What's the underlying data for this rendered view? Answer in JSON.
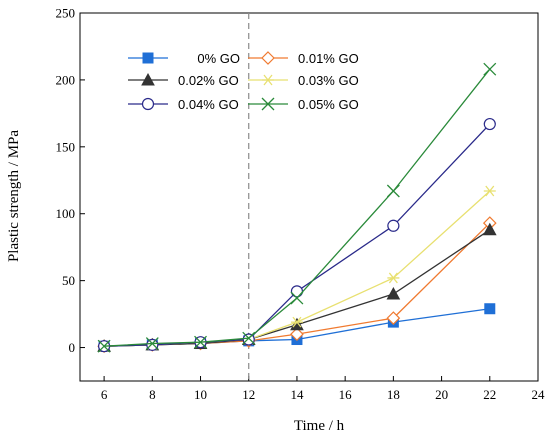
{
  "chart_data": {
    "type": "line",
    "xlabel": "Time / h",
    "ylabel": "Plastic strength / MPa",
    "xlim": [
      5,
      24
    ],
    "ylim": [
      -25,
      250
    ],
    "xticks": [
      6,
      8,
      10,
      12,
      14,
      16,
      18,
      20,
      22,
      24
    ],
    "yticks": [
      0,
      50,
      100,
      150,
      200,
      250
    ],
    "grid": false,
    "legend_position": "top-left",
    "reference_line": {
      "x": 12,
      "style": "dashed"
    },
    "x": [
      6,
      8,
      10,
      12,
      14,
      18,
      22
    ],
    "series": [
      {
        "name": "0% GO",
        "marker": "square",
        "color": "#1f6fd6",
        "values": [
          1,
          2,
          3,
          5,
          6,
          19,
          29
        ]
      },
      {
        "name": "0.01% GO",
        "marker": "diamond",
        "color": "#f07a30",
        "values": [
          1,
          2,
          3,
          5,
          10,
          22,
          93
        ]
      },
      {
        "name": "0.02% GO",
        "marker": "triangle",
        "color": "#333333",
        "values": [
          1,
          2,
          3,
          6,
          17,
          40,
          88
        ]
      },
      {
        "name": "0.03% GO",
        "marker": "asterisk",
        "color": "#e8e070",
        "values": [
          1,
          2,
          4,
          6,
          19,
          52,
          117
        ]
      },
      {
        "name": "0.04% GO",
        "marker": "circle",
        "color": "#2a2a8a",
        "values": [
          1,
          2,
          4,
          6,
          42,
          91,
          167
        ]
      },
      {
        "name": "0.05% GO",
        "marker": "x",
        "color": "#2a8a3a",
        "values": [
          1,
          3,
          4,
          7,
          37,
          117,
          208
        ]
      }
    ]
  }
}
